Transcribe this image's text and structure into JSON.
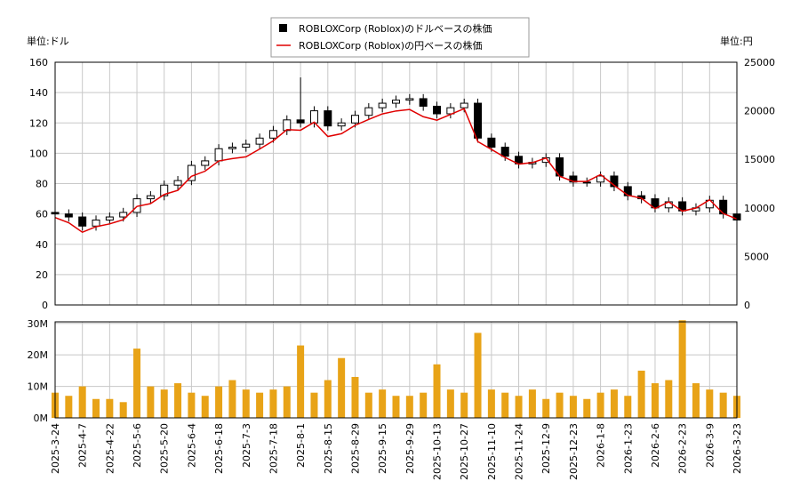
{
  "chart_data": [
    {
      "type": "candlestick",
      "y_unit": "単位:ドル",
      "y2_unit": "単位:円",
      "x": [
        0,
        5,
        10,
        15,
        20,
        25,
        30,
        35,
        40,
        45,
        50,
        55,
        60,
        65,
        70,
        75,
        80,
        85,
        90,
        95,
        100,
        105,
        110,
        115,
        120,
        125,
        130,
        135,
        140,
        145,
        150,
        155,
        160,
        165,
        170,
        175,
        180,
        185,
        190,
        195,
        200,
        205,
        210,
        215,
        220,
        225,
        230,
        235,
        240,
        245,
        250
      ],
      "xlim": [
        0,
        250
      ],
      "ylim": [
        0,
        160
      ],
      "yticks": [
        0,
        20,
        40,
        60,
        80,
        100,
        120,
        140,
        160
      ],
      "y2lim": [
        0,
        25000
      ],
      "y2ticks": [
        0,
        5000,
        10000,
        15000,
        20000,
        25000
      ],
      "grid": true,
      "series": [
        {
          "name": "ROBLOXCorp (Roblox)のドルベースの株価",
          "color": "#000000",
          "open": [
            61,
            60,
            58,
            52,
            56,
            58,
            61,
            70,
            72,
            79,
            82,
            92,
            95,
            103,
            104,
            106,
            110,
            115,
            122,
            120,
            128,
            118,
            120,
            125,
            130,
            133,
            135,
            136,
            131,
            126,
            130,
            133,
            110,
            104,
            98,
            93,
            94,
            97,
            85,
            81,
            81,
            85,
            78,
            72,
            70,
            64,
            68,
            62,
            64,
            69,
            60
          ],
          "high": [
            64,
            63,
            61,
            59,
            61,
            64,
            73,
            75,
            82,
            85,
            95,
            98,
            106,
            107,
            109,
            113,
            118,
            125,
            150,
            131,
            131,
            123,
            128,
            133,
            136,
            138,
            139,
            139,
            134,
            133,
            136,
            136,
            113,
            107,
            101,
            97,
            100,
            100,
            88,
            84,
            88,
            88,
            81,
            75,
            73,
            71,
            71,
            67,
            72,
            72,
            63
          ],
          "low": [
            57,
            55,
            49,
            49,
            53,
            55,
            58,
            67,
            69,
            76,
            79,
            89,
            92,
            100,
            101,
            103,
            107,
            112,
            117,
            117,
            115,
            115,
            117,
            122,
            127,
            130,
            132,
            128,
            123,
            123,
            127,
            107,
            101,
            95,
            90,
            90,
            91,
            82,
            78,
            78,
            78,
            75,
            69,
            67,
            61,
            61,
            59,
            59,
            61,
            57,
            53
          ],
          "close": [
            60,
            58,
            52,
            56,
            58,
            61,
            70,
            72,
            79,
            82,
            92,
            95,
            103,
            104,
            106,
            110,
            115,
            122,
            120,
            128,
            118,
            120,
            125,
            130,
            133,
            135,
            136,
            131,
            126,
            130,
            133,
            110,
            104,
            98,
            93,
            94,
            97,
            85,
            81,
            81,
            85,
            78,
            72,
            70,
            64,
            68,
            62,
            64,
            69,
            60,
            56
          ]
        },
        {
          "name": "ROBLOXCorp (Roblox)の円ベースの株価",
          "color": "#e00000",
          "axis": "y2",
          "values": [
            9000,
            8470,
            7490,
            8060,
            8350,
            8780,
            10150,
            10440,
            11380,
            11810,
            13250,
            13780,
            14830,
            15080,
            15260,
            16060,
            16910,
            18060,
            18000,
            18820,
            17350,
            17640,
            18500,
            19110,
            19680,
            19980,
            20130,
            19390,
            19030,
            19630,
            20220,
            16830,
            16020,
            15190,
            14510,
            14660,
            15130,
            13260,
            12720,
            12720,
            13430,
            12320,
            11300,
            10990,
            9920,
            10610,
            9670,
            9980,
            10830,
            9420,
            8850
          ]
        }
      ]
    },
    {
      "type": "bar",
      "x": [
        0,
        5,
        10,
        15,
        20,
        25,
        30,
        35,
        40,
        45,
        50,
        55,
        60,
        65,
        70,
        75,
        80,
        85,
        90,
        95,
        100,
        105,
        110,
        115,
        120,
        125,
        130,
        135,
        140,
        145,
        150,
        155,
        160,
        165,
        170,
        175,
        180,
        185,
        190,
        195,
        200,
        205,
        210,
        215,
        220,
        225,
        230,
        235,
        240,
        245,
        250
      ],
      "xlim": [
        0,
        250
      ],
      "values": [
        8000000,
        7000000,
        10000000,
        6000000,
        6000000,
        5000000,
        22000000,
        10000000,
        9000000,
        11000000,
        8000000,
        7000000,
        10000000,
        12000000,
        9000000,
        8000000,
        9000000,
        10000000,
        23000000,
        8000000,
        12000000,
        19000000,
        13000000,
        8000000,
        9000000,
        7000000,
        7000000,
        8000000,
        17000000,
        9000000,
        8000000,
        27000000,
        9000000,
        8000000,
        7000000,
        9000000,
        6000000,
        8000000,
        7000000,
        6000000,
        8000000,
        9000000,
        7000000,
        15000000,
        11000000,
        12000000,
        31000000,
        11000000,
        9000000,
        8000000,
        7000000
      ],
      "color": "#e8a317",
      "ylim": [
        0,
        30500000
      ],
      "yticks": [
        {
          "value": 0,
          "label": "0M"
        },
        {
          "value": 10000000,
          "label": "10M"
        },
        {
          "value": 20000000,
          "label": "20M"
        },
        {
          "value": 30000000,
          "label": "30M"
        }
      ],
      "xticks": [
        {
          "value": 0,
          "label": "2025-3-24"
        },
        {
          "value": 10,
          "label": "2025-4-7"
        },
        {
          "value": 20,
          "label": "2025-4-22"
        },
        {
          "value": 30,
          "label": "2025-5-6"
        },
        {
          "value": 40,
          "label": "2025-5-20"
        },
        {
          "value": 50,
          "label": "2025-6-4"
        },
        {
          "value": 60,
          "label": "2025-6-18"
        },
        {
          "value": 70,
          "label": "2025-7-3"
        },
        {
          "value": 80,
          "label": "2025-7-18"
        },
        {
          "value": 90,
          "label": "2025-8-1"
        },
        {
          "value": 100,
          "label": "2025-8-15"
        },
        {
          "value": 110,
          "label": "2025-8-29"
        },
        {
          "value": 120,
          "label": "2025-9-15"
        },
        {
          "value": 130,
          "label": "2025-9-29"
        },
        {
          "value": 140,
          "label": "2025-10-13"
        },
        {
          "value": 150,
          "label": "2025-10-27"
        },
        {
          "value": 160,
          "label": "2025-11-10"
        },
        {
          "value": 170,
          "label": "2025-11-24"
        },
        {
          "value": 180,
          "label": "2025-12-9"
        },
        {
          "value": 190,
          "label": "2025-12-23"
        },
        {
          "value": 200,
          "label": "2026-1-8"
        },
        {
          "value": 210,
          "label": "2026-1-23"
        },
        {
          "value": 220,
          "label": "2026-2-6"
        },
        {
          "value": 230,
          "label": "2026-2-23"
        },
        {
          "value": 240,
          "label": "2026-3-9"
        },
        {
          "value": 250,
          "label": "2026-3-23"
        }
      ],
      "grid": true
    }
  ]
}
